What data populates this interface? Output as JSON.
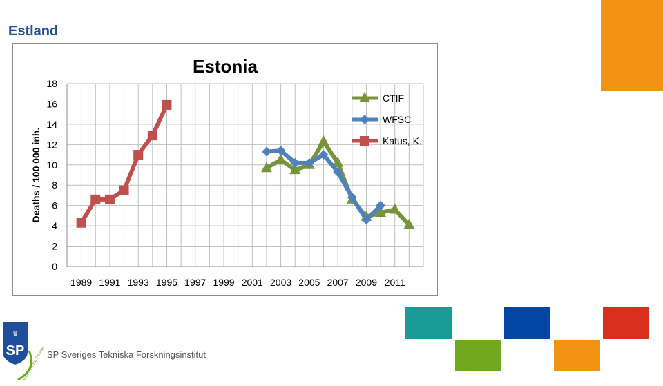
{
  "slide": {
    "title": "Estland",
    "footer_text": "SP Sveriges Tekniska Forskningsinstitut",
    "logo_text": "SP",
    "logo_tagline": "Your Science Partner"
  },
  "colors": {
    "title": "#1f4e9c",
    "orange": "#f39314",
    "teal": "#1a9c96",
    "blue": "#0047a3",
    "green": "#71a91e",
    "red": "#d9301d"
  },
  "chart_data": {
    "type": "line",
    "title": "Estonia",
    "xlabel": "",
    "ylabel": "Deaths / 100 000 inh.",
    "xlim": [
      1988,
      2013
    ],
    "ylim": [
      0,
      18
    ],
    "yticks": [
      0,
      2,
      4,
      6,
      8,
      10,
      12,
      14,
      16,
      18
    ],
    "xticks": [
      "1989",
      "1991",
      "1993",
      "1995",
      "1997",
      "1999",
      "2001",
      "2003",
      "2005",
      "2007",
      "2009",
      "2011"
    ],
    "grid": true,
    "legend": "top-right",
    "series": [
      {
        "name": "CTIF",
        "color": "#77933c",
        "marker": "triangle",
        "x": [
          2002,
          2003,
          2004,
          2005,
          2006,
          2007,
          2008,
          2009,
          2010,
          2011,
          2012
        ],
        "y": [
          9.7,
          10.5,
          9.5,
          10.0,
          12.3,
          10.2,
          6.6,
          4.9,
          5.3,
          5.6,
          4.1
        ]
      },
      {
        "name": "WFSC",
        "color": "#4f81bd",
        "marker": "diamond",
        "x": [
          2002,
          2003,
          2004,
          2005,
          2006,
          2007,
          2008,
          2009,
          2010
        ],
        "y": [
          11.3,
          11.4,
          10.2,
          10.2,
          11.0,
          9.3,
          6.8,
          4.6,
          6.0
        ]
      },
      {
        "name": "Katus, K.",
        "color": "#c0504d",
        "marker": "square",
        "x": [
          1989,
          1990,
          1991,
          1992,
          1993,
          1994,
          1995
        ],
        "y": [
          4.3,
          6.6,
          6.6,
          7.5,
          11.0,
          12.9,
          15.9
        ]
      }
    ]
  }
}
